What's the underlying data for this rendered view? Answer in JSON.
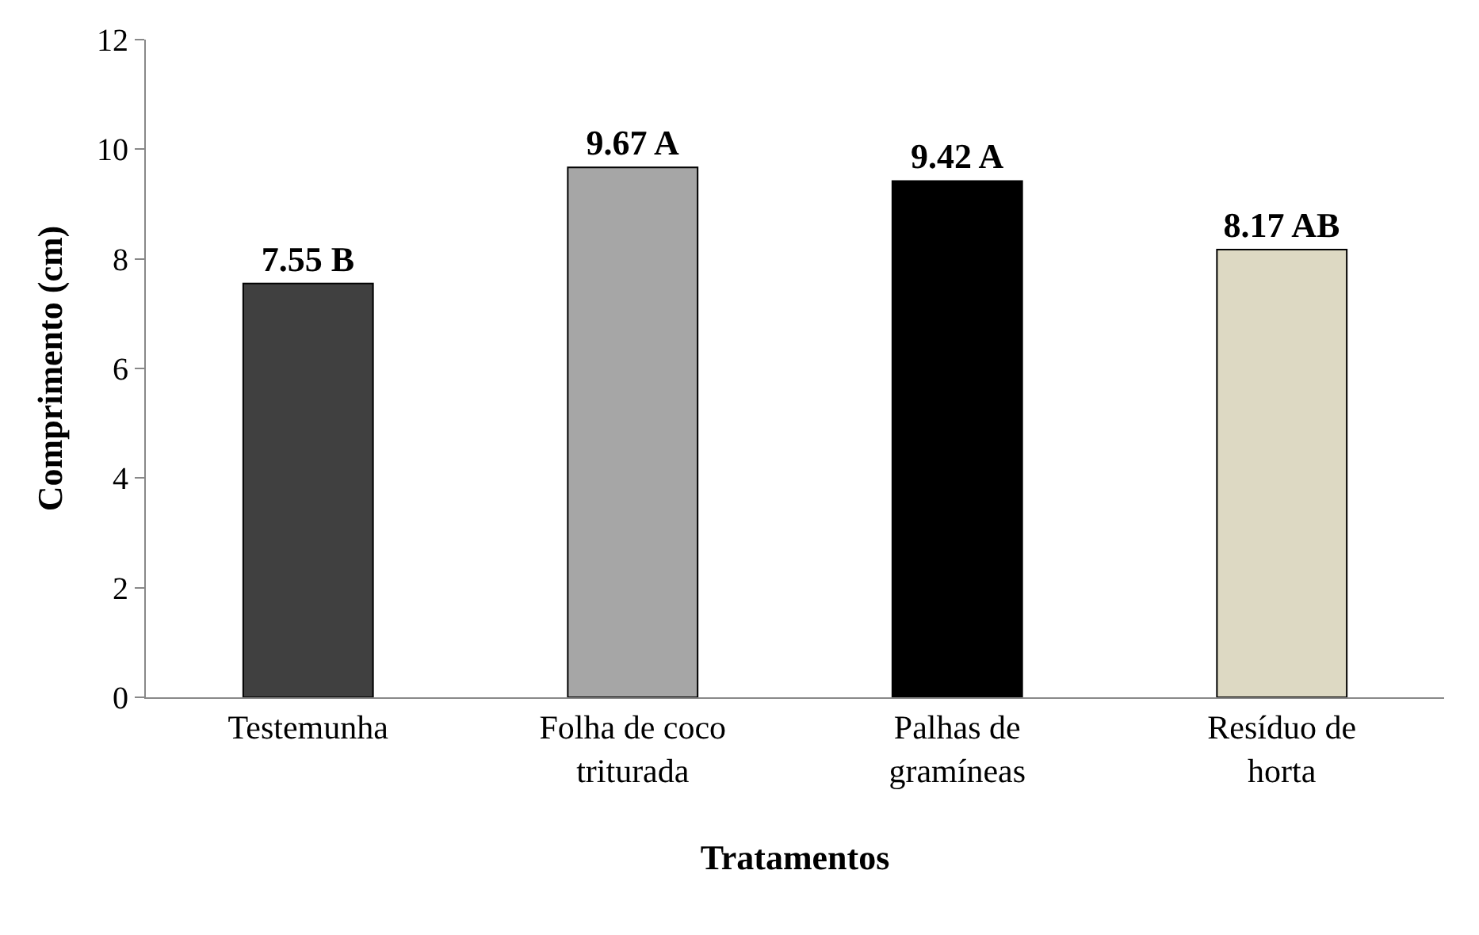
{
  "chart_data": {
    "type": "bar",
    "xlabel": "Tratamentos",
    "ylabel": "Comprimento (cm)",
    "categories": [
      "Testemunha",
      "Folha de coco triturada",
      "Palhas de gramíneas",
      "Resíduo de horta"
    ],
    "values": [
      7.55,
      9.67,
      9.42,
      8.17
    ],
    "colors": [
      "#404040",
      "#a6a6a6",
      "#000000",
      "#ddd9c3"
    ],
    "value_labels": [
      "7.55 B",
      "9.67 A",
      "9.42 A",
      "8.17 AB"
    ],
    "ylim": [
      0,
      12
    ],
    "yticks": [
      0,
      2,
      4,
      6,
      8,
      10,
      12
    ]
  }
}
